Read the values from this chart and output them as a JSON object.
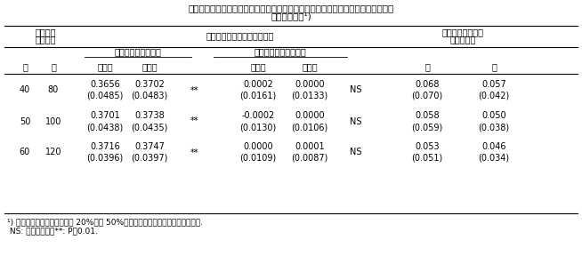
{
  "title": "表２　異なる２種類の制限によって選抜された個体の平均育種価と異なる個体が選\n抜される割合¹)",
  "header1_left": "選抜集団\nのサイズ",
  "header1_mid": "選抜された個体の平均育種価",
  "header1_right": "異なる個体が選抜\nされる割合",
  "header2_trait1": "形質１（制限なし）",
  "header2_trait2": "形質２（改良量＝０）",
  "header3_cols": [
    "雄",
    "雌",
    "従来法",
    "改良法",
    "",
    "従来法",
    "改良法",
    "",
    "雄",
    "雌"
  ],
  "rows": [
    {
      "male": "40",
      "female": "80",
      "t1_conv": "0.3656\n(0.0485)",
      "t1_impr": "0.3702\n(0.0483)",
      "sig1": "**",
      "t2_conv": "0.0002\n(0.0161)",
      "t2_impr": "0.0000\n(0.0133)",
      "sig2": "NS",
      "diff_male": "0.068\n(0.070)",
      "diff_female": "0.057\n(0.042)"
    },
    {
      "male": "50",
      "female": "100",
      "t1_conv": "0.3701\n(0.0438)",
      "t1_impr": "0.3738\n(0.0435)",
      "sig1": "**",
      "t2_conv": "-0.0002\n(0.0130)",
      "t2_impr": "0.0000\n(0.0106)",
      "sig2": "NS",
      "diff_male": "0.058\n(0.059)",
      "diff_female": "0.050\n(0.038)"
    },
    {
      "male": "60",
      "female": "120",
      "t1_conv": "0.3716\n(0.0396)",
      "t1_impr": "0.3747\n(0.0397)",
      "sig1": "**",
      "t2_conv": "0.0000\n(0.0109)",
      "t2_impr": "0.0001\n(0.0087)",
      "sig2": "NS",
      "diff_male": "0.053\n(0.051)",
      "diff_female": "0.046\n(0.034)"
    }
  ],
  "footnote": "¹) 選抜率はいずれの集団も雄 20%，雌 50%．括弧内の数値はいずれも標準偏差.\n NS: 有意差なし，**: P＜0.01.",
  "bg_color": "#ffffff",
  "text_color": "#000000",
  "line_color": "#000000"
}
